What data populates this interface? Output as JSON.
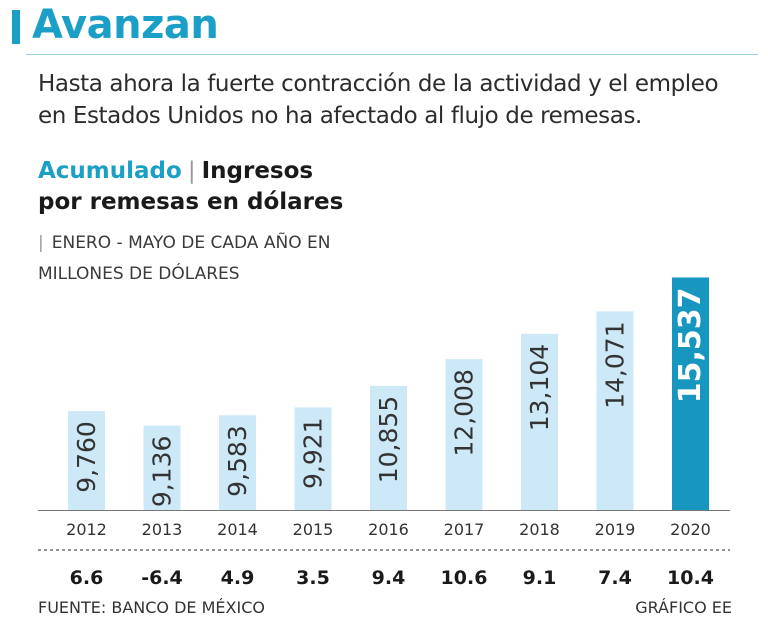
{
  "header": {
    "title": "Avanzan",
    "subtitle": "Hasta ahora la fuerte contracción de la actividad y el empleo en Estados Unidos no ha afectado al flujo de remesas."
  },
  "chart_head": {
    "accent": "Acumulado",
    "separator": "|",
    "line1": "Ingresos",
    "line2": "por remesas en dólares"
  },
  "units_label": "ENERO - MAYO DE CADA AÑO EN MILLONES DE DÓLARES",
  "footer": {
    "source": "FUENTE: BANCO DE MÉXICO",
    "credit": "GRÁFICO EE"
  },
  "colors": {
    "accent": "#1b9fc6",
    "bar": "#cde8f7",
    "bar_highlight": "#1797c0"
  },
  "chart_data": {
    "type": "bar",
    "title": "Ingresos por remesas en dólares",
    "ylabel": "Millones de dólares",
    "categories": [
      "2012",
      "2013",
      "2014",
      "2015",
      "2016",
      "2017",
      "2018",
      "2019",
      "2020"
    ],
    "values": [
      9760,
      9136,
      9583,
      9921,
      10855,
      12008,
      13104,
      14071,
      15537
    ],
    "value_labels": [
      "9,760",
      "9,136",
      "9,583",
      "9,921",
      "10,855",
      "12,008",
      "13,104",
      "14,071",
      "15,537"
    ],
    "growth_labels": [
      "6.6",
      "-6.4",
      "4.9",
      "3.5",
      "9.4",
      "10.6",
      "9.1",
      "7.4",
      "10.4"
    ],
    "highlight": "2020"
  }
}
